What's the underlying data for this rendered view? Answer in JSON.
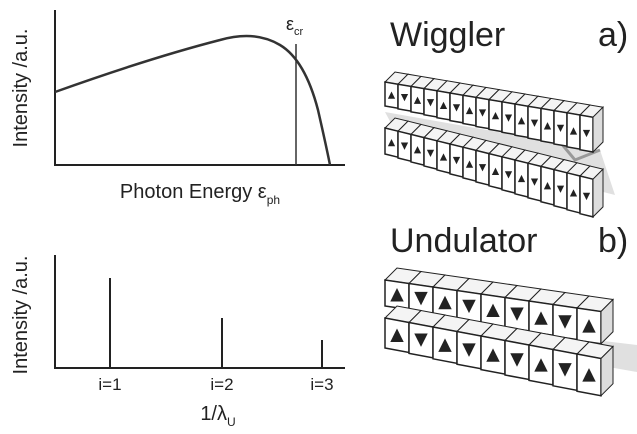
{
  "top_plot": {
    "y_label": "Intensity /a.u.",
    "x_label": "Photon Energy ε",
    "x_label_sub": "ph",
    "annotation": "ε",
    "annotation_sub": "cr"
  },
  "bottom_plot": {
    "y_label": "Intensity /a.u.",
    "x_label": "1/λ",
    "x_label_sub": "U",
    "ticks": [
      "i=1",
      "i=2",
      "i=3"
    ]
  },
  "panels": [
    {
      "title": "Wiggler",
      "label": "a)"
    },
    {
      "title": "Undulator",
      "label": "b)"
    }
  ]
}
